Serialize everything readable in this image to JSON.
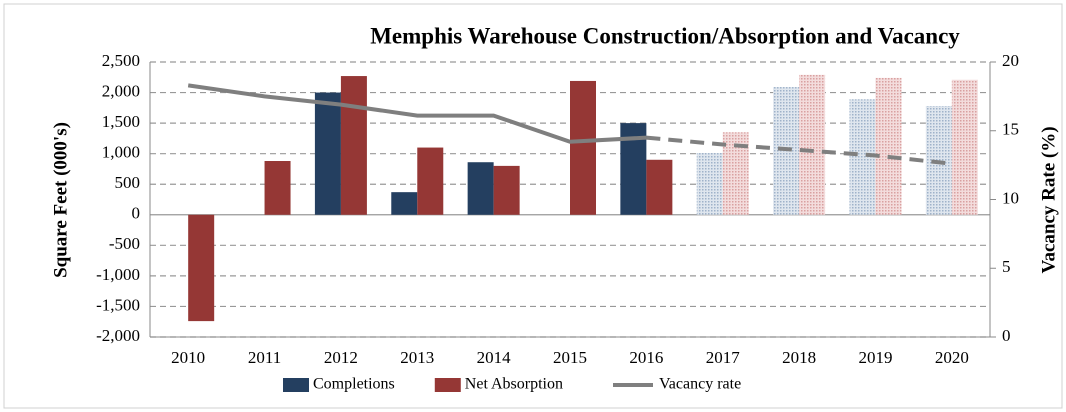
{
  "chart_data": {
    "type": "bar",
    "title": "Memphis Warehouse Construction/Absorption and Vacancy",
    "categories": [
      "2010",
      "2011",
      "2012",
      "2013",
      "2014",
      "2015",
      "2016",
      "2017",
      "2018",
      "2019",
      "2020"
    ],
    "forecast_from": "2017",
    "series": [
      {
        "name": "Completions",
        "color": "#243f60",
        "forecast_color": "#b8c7da",
        "values": [
          null,
          null,
          2000,
          370,
          860,
          null,
          1500,
          1010,
          2090,
          1890,
          1780
        ]
      },
      {
        "name": "Net Absorption",
        "color": "#953735",
        "forecast_color": "#e6b9b8",
        "values": [
          -1740,
          880,
          2270,
          1100,
          800,
          2190,
          900,
          1350,
          2290,
          2240,
          2210
        ]
      },
      {
        "name": "Vacancy rate",
        "type": "line",
        "axis": "y2",
        "color": "#7f7f7f",
        "values": [
          18.3,
          17.5,
          16.9,
          16.1,
          16.1,
          14.2,
          14.5,
          14.0,
          13.6,
          13.2,
          12.6
        ]
      }
    ],
    "ylabel": "Square Feet (000's)",
    "y2label": "Vacancy Rate (%)",
    "ylim": [
      -2000,
      2500
    ],
    "yticks": [
      {
        "value": -2000,
        "label": "-2,000"
      },
      {
        "value": -1500,
        "label": "-1,500"
      },
      {
        "value": -1000,
        "label": "-1,000"
      },
      -500,
      0,
      500,
      {
        "value": 1000,
        "label": "1,000"
      },
      {
        "value": 1500,
        "label": "1,500"
      },
      {
        "value": 2000,
        "label": "2,000"
      },
      {
        "value": 2500,
        "label": "2,500"
      }
    ],
    "y2lim": [
      0,
      20
    ],
    "y2ticks": [
      0,
      5,
      10,
      15,
      20
    ],
    "grid": true,
    "legend": "bottom"
  }
}
